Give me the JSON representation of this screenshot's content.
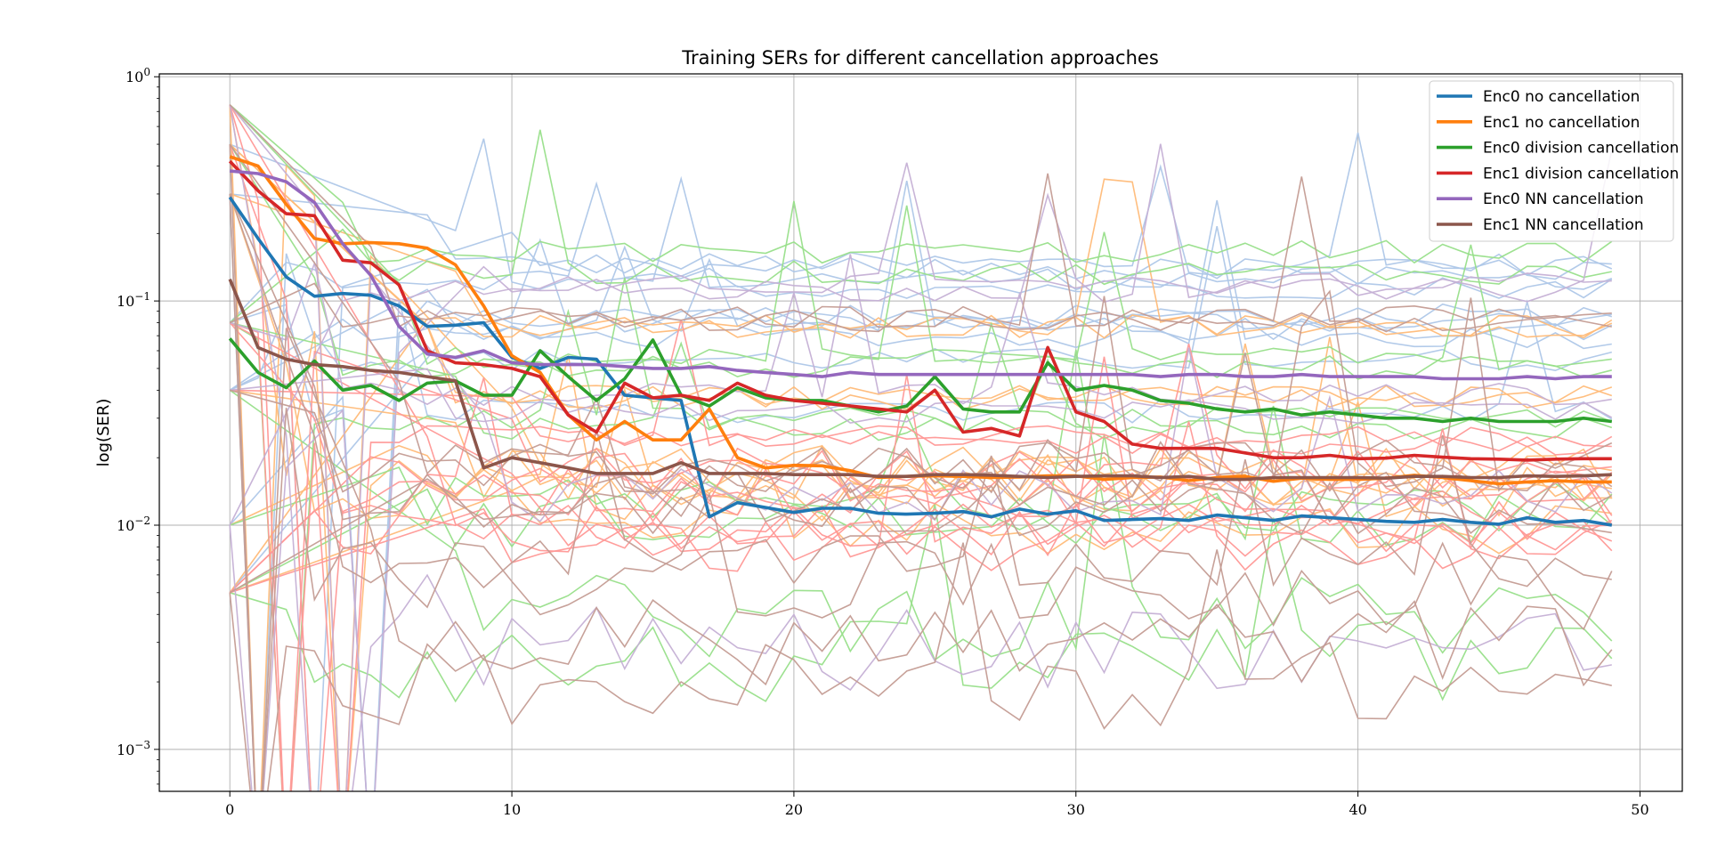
{
  "chart_data": {
    "type": "line",
    "title": "Training SERs for different cancellation approaches",
    "xlabel": "",
    "ylabel": "log(SER)",
    "yscale": "log",
    "xlim": [
      -2.5,
      51.5
    ],
    "ylim": [
      0.00065,
      1.03
    ],
    "x_ticks": [
      0,
      10,
      20,
      30,
      40,
      50
    ],
    "y_ticks": [
      {
        "value": 0.001,
        "label": "10",
        "exp": "−3"
      },
      {
        "value": 0.01,
        "label": "10",
        "exp": "−2"
      },
      {
        "value": 0.1,
        "label": "10",
        "exp": "−1"
      },
      {
        "value": 1,
        "label": "10",
        "exp": "0"
      }
    ],
    "grid": true,
    "legend_position": "top-right",
    "x": [
      0,
      1,
      2,
      3,
      4,
      5,
      6,
      7,
      8,
      9,
      10,
      11,
      12,
      13,
      14,
      15,
      16,
      17,
      18,
      19,
      20,
      21,
      22,
      23,
      24,
      25,
      26,
      27,
      28,
      29,
      30,
      31,
      32,
      33,
      34,
      35,
      36,
      37,
      38,
      39,
      40,
      41,
      42,
      43,
      44,
      45,
      46,
      47,
      48,
      49
    ],
    "series": [
      {
        "name": "Enc0 no cancellation",
        "color": "#1f77b4",
        "values": [
          0.29,
          0.19,
          0.128,
          0.105,
          0.108,
          0.106,
          0.095,
          0.077,
          0.078,
          0.08,
          0.056,
          0.05,
          0.056,
          0.055,
          0.038,
          0.037,
          0.036,
          0.0109,
          0.0126,
          0.012,
          0.0114,
          0.0119,
          0.0119,
          0.0113,
          0.0112,
          0.0113,
          0.0115,
          0.0109,
          0.0118,
          0.0112,
          0.0116,
          0.0105,
          0.0106,
          0.0107,
          0.0105,
          0.0111,
          0.0108,
          0.0105,
          0.011,
          0.0108,
          0.0106,
          0.0104,
          0.0103,
          0.0106,
          0.0103,
          0.0101,
          0.0108,
          0.0103,
          0.0105,
          0.01
        ]
      },
      {
        "name": "Enc1 no cancellation",
        "color": "#ff7f0e",
        "values": [
          0.44,
          0.4,
          0.27,
          0.19,
          0.18,
          0.182,
          0.18,
          0.172,
          0.145,
          0.095,
          0.057,
          0.048,
          0.031,
          0.024,
          0.029,
          0.024,
          0.024,
          0.033,
          0.02,
          0.018,
          0.0185,
          0.0184,
          0.0175,
          0.0163,
          0.0165,
          0.0166,
          0.0165,
          0.0163,
          0.0164,
          0.0166,
          0.0166,
          0.016,
          0.0163,
          0.0164,
          0.0158,
          0.0163,
          0.0165,
          0.0157,
          0.0162,
          0.016,
          0.016,
          0.0162,
          0.0167,
          0.0163,
          0.0158,
          0.0153,
          0.0156,
          0.0158,
          0.0156,
          0.0156
        ]
      },
      {
        "name": "Enc0 division cancellation",
        "color": "#2ca02c",
        "values": [
          0.068,
          0.048,
          0.041,
          0.054,
          0.04,
          0.042,
          0.036,
          0.043,
          0.044,
          0.038,
          0.038,
          0.06,
          0.046,
          0.036,
          0.045,
          0.067,
          0.038,
          0.034,
          0.041,
          0.037,
          0.036,
          0.036,
          0.034,
          0.032,
          0.034,
          0.046,
          0.033,
          0.032,
          0.032,
          0.053,
          0.04,
          0.042,
          0.04,
          0.036,
          0.035,
          0.033,
          0.032,
          0.033,
          0.031,
          0.032,
          0.031,
          0.03,
          0.03,
          0.029,
          0.03,
          0.029,
          0.029,
          0.029,
          0.03,
          0.029
        ]
      },
      {
        "name": "Enc1 division cancellation",
        "color": "#d62728",
        "values": [
          0.42,
          0.31,
          0.245,
          0.24,
          0.152,
          0.148,
          0.118,
          0.06,
          0.053,
          0.052,
          0.05,
          0.046,
          0.031,
          0.026,
          0.043,
          0.037,
          0.038,
          0.036,
          0.043,
          0.038,
          0.036,
          0.035,
          0.034,
          0.033,
          0.032,
          0.04,
          0.026,
          0.027,
          0.025,
          0.062,
          0.032,
          0.029,
          0.023,
          0.022,
          0.022,
          0.022,
          0.021,
          0.02,
          0.02,
          0.0205,
          0.0198,
          0.0199,
          0.0205,
          0.0201,
          0.0198,
          0.0197,
          0.0195,
          0.0197,
          0.0198,
          0.0198
        ]
      },
      {
        "name": "Enc0 NN cancellation",
        "color": "#9467bd",
        "values": [
          0.38,
          0.37,
          0.34,
          0.275,
          0.18,
          0.13,
          0.077,
          0.058,
          0.056,
          0.06,
          0.053,
          0.052,
          0.052,
          0.052,
          0.051,
          0.05,
          0.05,
          0.051,
          0.049,
          0.048,
          0.047,
          0.046,
          0.048,
          0.047,
          0.047,
          0.047,
          0.047,
          0.047,
          0.047,
          0.047,
          0.047,
          0.047,
          0.047,
          0.046,
          0.047,
          0.047,
          0.046,
          0.046,
          0.047,
          0.046,
          0.046,
          0.046,
          0.046,
          0.045,
          0.045,
          0.045,
          0.046,
          0.045,
          0.046,
          0.046
        ]
      },
      {
        "name": "Enc1 NN cancellation",
        "color": "#8c564b",
        "values": [
          0.125,
          0.062,
          0.055,
          0.052,
          0.051,
          0.049,
          0.048,
          0.046,
          0.044,
          0.018,
          0.02,
          0.019,
          0.018,
          0.017,
          0.017,
          0.017,
          0.019,
          0.017,
          0.017,
          0.017,
          0.0168,
          0.0168,
          0.0168,
          0.0165,
          0.0165,
          0.0168,
          0.0168,
          0.0167,
          0.0165,
          0.0163,
          0.0165,
          0.0166,
          0.0166,
          0.0163,
          0.0165,
          0.016,
          0.016,
          0.0163,
          0.0163,
          0.0163,
          0.0163,
          0.0162,
          0.0165,
          0.0165,
          0.0163,
          0.0163,
          0.0166,
          0.0165,
          0.0166,
          0.0168
        ]
      }
    ],
    "background_run_families": [
      {
        "color": "#aec7e8",
        "count": 10
      },
      {
        "color": "#ffbb78",
        "count": 10
      },
      {
        "color": "#98df8a",
        "count": 10
      },
      {
        "color": "#ff9896",
        "count": 10
      },
      {
        "color": "#c5b0d5",
        "count": 6
      },
      {
        "color": "#c49c94",
        "count": 10
      }
    ]
  }
}
